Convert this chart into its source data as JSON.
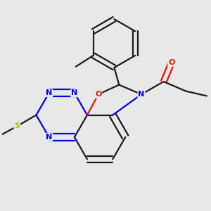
{
  "bg_color": "#e8e8e8",
  "bond_color": "#1a1a1a",
  "N_color": "#0000ee",
  "O_color": "#ee1100",
  "S_color": "#bbbb00",
  "line_width": 1.6,
  "dbo": 0.042,
  "figsize": [
    3.0,
    3.0
  ],
  "dpi": 100,
  "xlim": [
    0.2,
    2.8
  ],
  "ylim": [
    0.3,
    2.9
  ]
}
